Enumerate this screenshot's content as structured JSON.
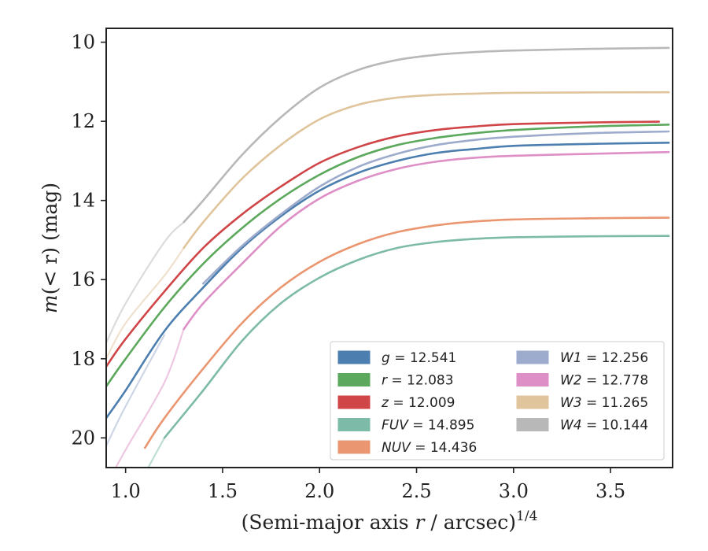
{
  "chart_data": {
    "type": "line",
    "xlabel_prefix": "(Semi-major axis ",
    "xlabel_var": "r",
    "xlabel_suffix": " / arcsec)",
    "xlabel_exp": "1/4",
    "ylabel_m": "m",
    "ylabel_args": "(< r)",
    "ylabel_unit": " (mag)",
    "xlim": [
      0.9,
      3.82
    ],
    "ylim": [
      20.75,
      9.65
    ],
    "y_inverted": true,
    "xticks": [
      1.0,
      1.5,
      2.0,
      2.5,
      3.0,
      3.5
    ],
    "xtick_labels": [
      "1.0",
      "1.5",
      "2.0",
      "2.5",
      "3.0",
      "3.5"
    ],
    "yticks": [
      10,
      12,
      14,
      16,
      18,
      20
    ],
    "ytick_labels": [
      "10",
      "12",
      "14",
      "16",
      "18",
      "20"
    ],
    "grid": false,
    "legend_position": "lower-right",
    "legend_columns": 2,
    "series": [
      {
        "name": "g",
        "label_value": "12.541",
        "color": "#4c7fb0",
        "x_start": 0.9,
        "x_end": 3.8,
        "faint_until": null,
        "x": [
          0.9,
          1.0,
          1.2,
          1.4,
          1.6,
          1.8,
          2.0,
          2.2,
          2.4,
          2.6,
          2.8,
          3.0,
          3.4,
          3.8
        ],
        "y": [
          19.5,
          18.8,
          17.3,
          16.2,
          15.2,
          14.4,
          13.75,
          13.3,
          13.0,
          12.8,
          12.7,
          12.62,
          12.57,
          12.541
        ]
      },
      {
        "name": "r",
        "label_value": "12.083",
        "color": "#5ca85c",
        "x_start": 0.9,
        "x_end": 3.8,
        "faint_until": null,
        "x": [
          0.9,
          1.0,
          1.2,
          1.4,
          1.6,
          1.8,
          2.0,
          2.2,
          2.4,
          2.6,
          2.8,
          3.0,
          3.4,
          3.8
        ],
        "y": [
          18.7,
          18.0,
          16.7,
          15.6,
          14.7,
          13.95,
          13.35,
          12.9,
          12.6,
          12.42,
          12.3,
          12.22,
          12.13,
          12.083
        ]
      },
      {
        "name": "z",
        "label_value": "12.009",
        "color": "#d04648",
        "x_start": 0.9,
        "x_end": 3.75,
        "faint_until": null,
        "x": [
          0.9,
          1.0,
          1.2,
          1.4,
          1.6,
          1.8,
          2.0,
          2.2,
          2.4,
          2.6,
          2.8,
          3.0,
          3.4,
          3.75
        ],
        "y": [
          18.2,
          17.5,
          16.3,
          15.2,
          14.35,
          13.65,
          13.05,
          12.65,
          12.38,
          12.22,
          12.13,
          12.07,
          12.03,
          12.009
        ]
      },
      {
        "name": "FUV",
        "label_value": "14.895",
        "color": "#7dbba8",
        "x_start": 1.1,
        "x_end": 3.8,
        "faint_until": 1.2,
        "x": [
          1.1,
          1.2,
          1.4,
          1.6,
          1.8,
          2.0,
          2.2,
          2.4,
          2.6,
          2.8,
          3.0,
          3.4,
          3.8
        ],
        "y": [
          20.9,
          20.0,
          18.8,
          17.55,
          16.6,
          15.95,
          15.5,
          15.2,
          15.05,
          14.97,
          14.93,
          14.905,
          14.895
        ]
      },
      {
        "name": "NUV",
        "label_value": "14.436",
        "color": "#ea9670",
        "x_start": 1.1,
        "x_end": 3.8,
        "faint_until": null,
        "x": [
          1.1,
          1.2,
          1.4,
          1.6,
          1.8,
          2.0,
          2.2,
          2.4,
          2.6,
          2.8,
          3.0,
          3.4,
          3.8
        ],
        "y": [
          20.25,
          19.5,
          18.25,
          17.1,
          16.2,
          15.55,
          15.1,
          14.8,
          14.63,
          14.53,
          14.48,
          14.45,
          14.436
        ]
      },
      {
        "name": "W1",
        "label_value": "12.256",
        "color": "#9dabcc",
        "x_start": 0.9,
        "x_end": 3.8,
        "faint_until": 1.3,
        "x": [
          0.9,
          1.0,
          1.2,
          1.4,
          1.6,
          1.8,
          2.0,
          2.2,
          2.4,
          2.6,
          2.8,
          3.0,
          3.4,
          3.8
        ],
        "y": [
          20.2,
          19.2,
          17.4,
          16.1,
          15.15,
          14.35,
          13.65,
          13.15,
          12.82,
          12.6,
          12.47,
          12.39,
          12.3,
          12.256
        ]
      },
      {
        "name": "W2",
        "label_value": "12.778",
        "color": "#de8fc6",
        "x_start": 0.9,
        "x_end": 3.8,
        "faint_until": 1.3,
        "x": [
          0.9,
          1.0,
          1.2,
          1.3,
          1.4,
          1.6,
          1.8,
          2.0,
          2.2,
          2.4,
          2.6,
          2.8,
          3.0,
          3.4,
          3.8
        ],
        "y": [
          21.2,
          20.3,
          18.6,
          17.25,
          16.6,
          15.6,
          14.65,
          13.95,
          13.5,
          13.2,
          13.02,
          12.92,
          12.87,
          12.82,
          12.778
        ]
      },
      {
        "name": "W3",
        "label_value": "11.265",
        "color": "#dfc49c",
        "x_start": 0.9,
        "x_end": 3.8,
        "faint_until": 1.3,
        "x": [
          0.9,
          1.0,
          1.2,
          1.3,
          1.4,
          1.6,
          1.8,
          2.0,
          2.2,
          2.4,
          2.6,
          2.8,
          3.0,
          3.4,
          3.8
        ],
        "y": [
          18.0,
          17.1,
          15.9,
          15.2,
          14.55,
          13.45,
          12.6,
          11.95,
          11.58,
          11.4,
          11.33,
          11.3,
          11.28,
          11.27,
          11.265
        ]
      },
      {
        "name": "W4",
        "label_value": "10.144",
        "color": "#b8b8b8",
        "x_start": 0.9,
        "x_end": 3.8,
        "faint_until": 1.3,
        "x": [
          0.9,
          1.0,
          1.2,
          1.3,
          1.4,
          1.6,
          1.8,
          2.0,
          2.2,
          2.4,
          2.6,
          2.8,
          3.0,
          3.4,
          3.8
        ],
        "y": [
          17.6,
          16.6,
          15.05,
          14.55,
          14.0,
          12.85,
          11.9,
          11.15,
          10.7,
          10.45,
          10.32,
          10.25,
          10.21,
          10.17,
          10.144
        ]
      }
    ]
  }
}
